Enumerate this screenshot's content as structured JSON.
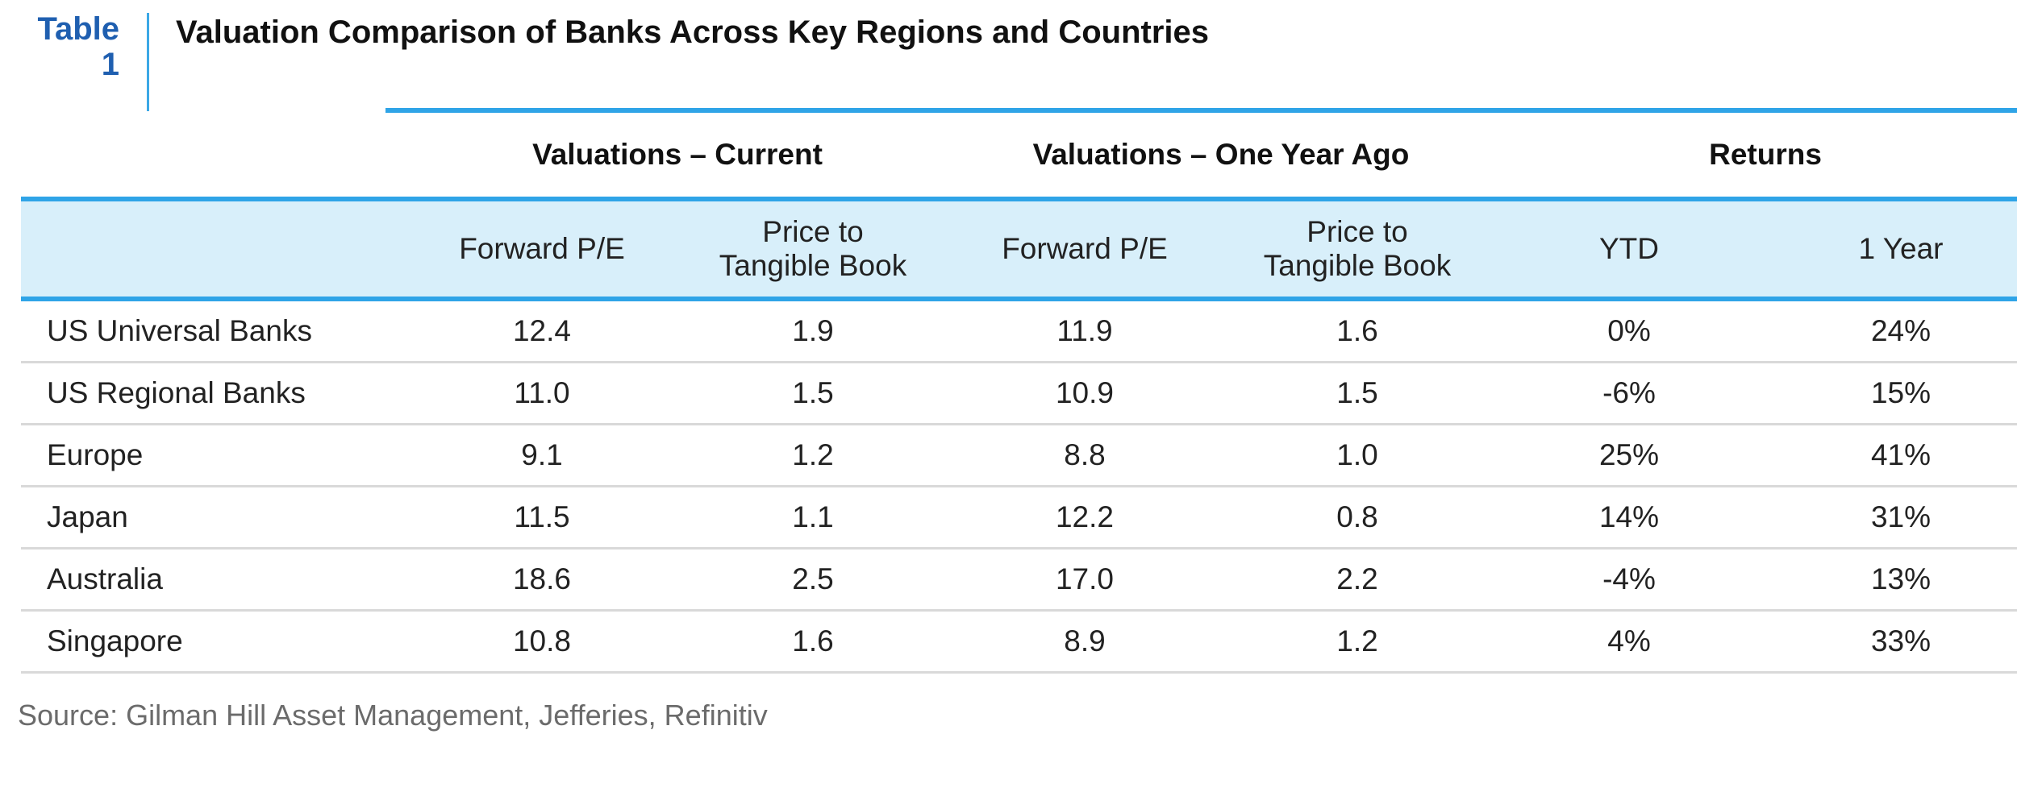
{
  "title_block": {
    "tag_line1": "Table",
    "tag_line2": "1",
    "title": "Valuation Comparison of Banks Across Key Regions and Countries"
  },
  "groups": [
    "Valuations – Current",
    "Valuations – One Year Ago",
    "Returns"
  ],
  "columns": [
    {
      "line1": "Forward P/E",
      "line2": ""
    },
    {
      "line1": "Price to",
      "line2": "Tangible Book"
    },
    {
      "line1": "Forward P/E",
      "line2": ""
    },
    {
      "line1": "Price to",
      "line2": "Tangible Book"
    },
    {
      "line1": "YTD",
      "line2": ""
    },
    {
      "line1": "1 Year",
      "line2": ""
    }
  ],
  "rows": [
    {
      "label": "US Universal Banks",
      "values": [
        "12.4",
        "1.9",
        "11.9",
        "1.6",
        "0%",
        "24%"
      ]
    },
    {
      "label": "US Regional Banks",
      "values": [
        "11.0",
        "1.5",
        "10.9",
        "1.5",
        "-6%",
        "15%"
      ]
    },
    {
      "label": "Europe",
      "values": [
        "9.1",
        "1.2",
        "8.8",
        "1.0",
        "25%",
        "41%"
      ]
    },
    {
      "label": "Japan",
      "values": [
        "11.5",
        "1.1",
        "12.2",
        "0.8",
        "14%",
        "31%"
      ]
    },
    {
      "label": "Australia",
      "values": [
        "18.6",
        "2.5",
        "17.0",
        "2.2",
        "-4%",
        "13%"
      ]
    },
    {
      "label": "Singapore",
      "values": [
        "10.8",
        "1.6",
        "8.9",
        "1.2",
        "4%",
        "33%"
      ]
    }
  ],
  "source": "Source: Gilman Hill Asset Management, Jefferies, Refinitiv",
  "colors": {
    "accent_blue": "#2fa4e7",
    "tag_blue": "#1f5fb0",
    "header_band": "#d8effa"
  }
}
